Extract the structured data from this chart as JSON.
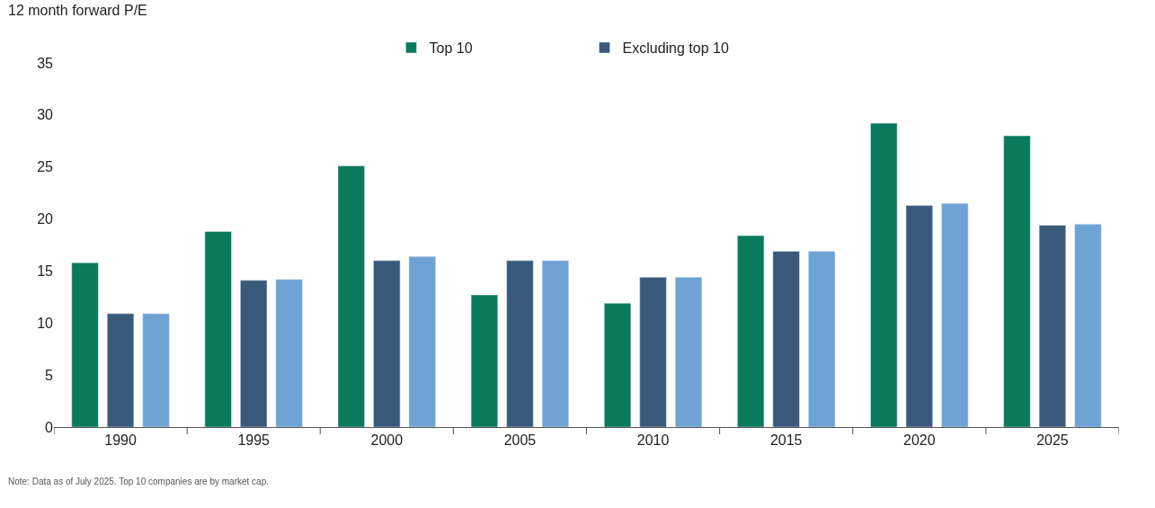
{
  "chart_data": {
    "type": "bar",
    "ylabel": "12 month forward P/E",
    "categories": [
      "1990",
      "1995",
      "2000",
      "2005",
      "2010",
      "2015",
      "2020",
      "2025"
    ],
    "series": [
      {
        "name": "Top 10",
        "color": "#0a7a5c",
        "values": [
          15.8,
          18.8,
          25.1,
          12.7,
          11.9,
          18.4,
          29.2,
          28.0
        ]
      },
      {
        "name": "Excluding top 10",
        "color": "#3a5a7c",
        "values": [
          10.9,
          14.1,
          16.0,
          16.0,
          14.4,
          16.9,
          21.3,
          19.4
        ]
      },
      {
        "color": "#6fa3d6",
        "values": [
          10.9,
          14.2,
          16.4,
          16.0,
          14.4,
          16.9,
          21.5,
          19.5
        ]
      }
    ],
    "ylim": [
      0,
      35
    ],
    "yticks": [
      0,
      5,
      10,
      15,
      20,
      25,
      30,
      35
    ],
    "legend": "top",
    "annotations": [
      "Note: Data as of July 2025. Top 10 companies are by market cap."
    ]
  }
}
